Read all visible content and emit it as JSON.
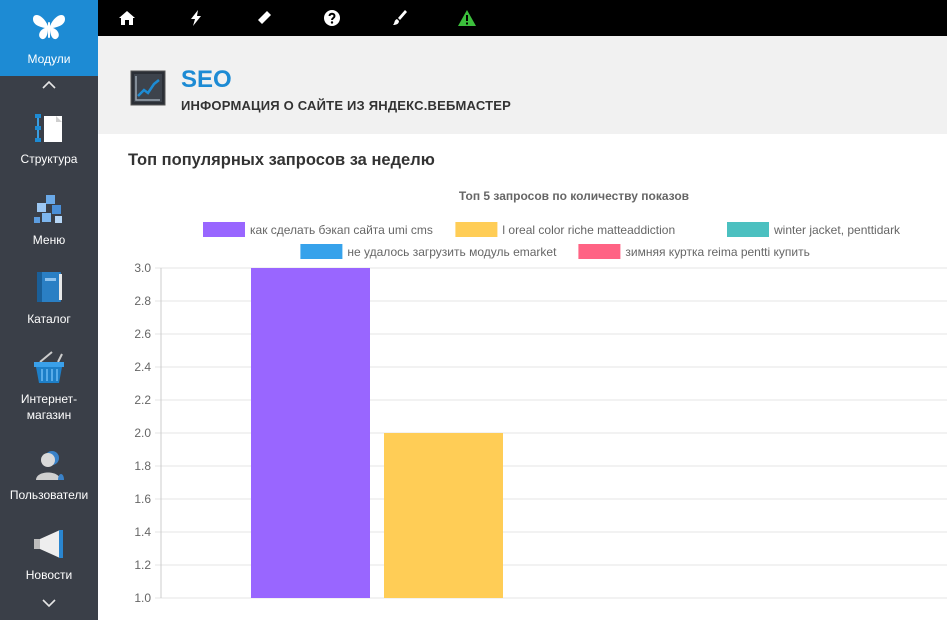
{
  "sidebar": {
    "modules_label": "Модули",
    "items": [
      {
        "label": "Структура",
        "icon": "structure-icon"
      },
      {
        "label": "Меню",
        "icon": "menu-cubes-icon"
      },
      {
        "label": "Каталог",
        "icon": "catalog-book-icon"
      },
      {
        "label": "Интернет-\nмагазин",
        "label1": "Интернет-",
        "label2": "магазин",
        "icon": "shop-basket-icon"
      },
      {
        "label": "Пользователи",
        "icon": "users-icon"
      },
      {
        "label": "Новости",
        "icon": "news-megaphone-icon"
      }
    ]
  },
  "topbar": {
    "icons": [
      "home-icon",
      "lightning-icon",
      "pen-icon",
      "help-icon",
      "brush-icon",
      "warning-icon"
    ]
  },
  "header": {
    "title": "SEO",
    "subtitle": "ИНФОРМАЦИЯ О САЙТЕ ИЗ ЯНДЕКС.ВЕБМАСТЕР"
  },
  "section": {
    "title": "Топ популярных запросов за неделю"
  },
  "chart_data": {
    "type": "bar",
    "title": "Топ 5 запросов по количеству показов",
    "ylim": [
      1.0,
      3.0
    ],
    "yticks": [
      "3.0",
      "2.8",
      "2.6",
      "2.4",
      "2.2",
      "2.0",
      "1.8",
      "1.6",
      "1.4",
      "1.2",
      "1.0"
    ],
    "legend_position": "top",
    "grid": true,
    "series": [
      {
        "name": "как сделать бэкап сайта umi cms",
        "value": 3,
        "color": "#9966ff"
      },
      {
        "name": "l oreal color riche matteaddiction",
        "value": 2,
        "color": "#ffcd56"
      },
      {
        "name": "winter jacket, penttidark",
        "value": null,
        "color": "#4bc0c0"
      },
      {
        "name": "не удалось загрузить модуль emarket",
        "value": null,
        "color": "#36a2eb"
      },
      {
        "name": "зимняя куртка reima pentti купить",
        "value": null,
        "color": "#ff6384"
      }
    ]
  }
}
